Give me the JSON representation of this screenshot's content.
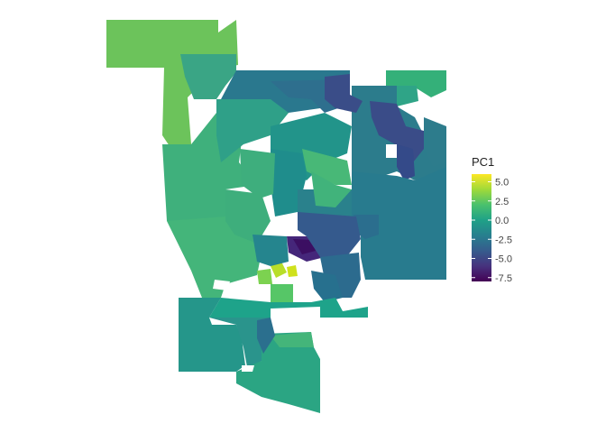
{
  "legend": {
    "title": "PC1",
    "ticks": [
      {
        "value": 5.0,
        "label": "5.0"
      },
      {
        "value": 2.5,
        "label": "2.5"
      },
      {
        "value": 0.0,
        "label": "0.0"
      },
      {
        "value": -2.5,
        "label": "-2.5"
      },
      {
        "value": -5.0,
        "label": "-5.0"
      },
      {
        "value": -7.5,
        "label": "-7.5"
      }
    ],
    "range": [
      -8.0,
      6.0
    ],
    "colormap": "viridis",
    "stops": [
      "#440154",
      "#46327e",
      "#365c8d",
      "#277f8e",
      "#1fa187",
      "#4ac16d",
      "#a0da39",
      "#fde725"
    ]
  },
  "map": {
    "background": "#ffffff"
  }
}
